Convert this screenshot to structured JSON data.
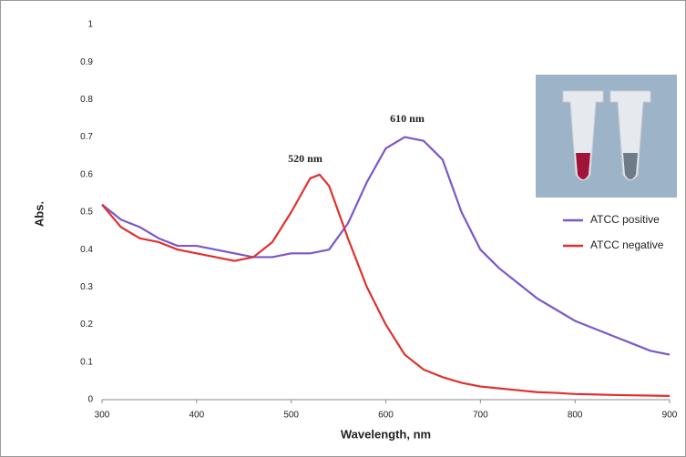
{
  "chart_data": {
    "type": "line",
    "xlabel": "Wavelength, nm",
    "ylabel": "Abs.",
    "xlim": [
      300,
      900
    ],
    "xticks": [
      300,
      400,
      500,
      600,
      700,
      800,
      900
    ],
    "ylim": [
      0,
      1
    ],
    "yticks": [
      0,
      0.1,
      0.2,
      0.3,
      0.4,
      0.5,
      0.6,
      0.7,
      0.8,
      0.9,
      1
    ],
    "legend": "right",
    "annotations": [
      "520 nm",
      "610 nm"
    ],
    "series": [
      {
        "name": "ATCC positive",
        "color": "#7b57c9",
        "x": [
          300,
          320,
          340,
          360,
          380,
          400,
          420,
          440,
          460,
          480,
          500,
          520,
          540,
          560,
          580,
          600,
          620,
          640,
          660,
          680,
          700,
          720,
          740,
          760,
          780,
          800,
          820,
          840,
          860,
          880,
          900
        ],
        "values": [
          0.52,
          0.48,
          0.46,
          0.43,
          0.41,
          0.41,
          0.4,
          0.39,
          0.38,
          0.38,
          0.39,
          0.39,
          0.4,
          0.47,
          0.58,
          0.67,
          0.7,
          0.69,
          0.64,
          0.5,
          0.4,
          0.35,
          0.31,
          0.27,
          0.24,
          0.21,
          0.19,
          0.17,
          0.15,
          0.13,
          0.12
        ]
      },
      {
        "name": "ATCC negative",
        "color": "#e0302e",
        "x": [
          300,
          320,
          340,
          360,
          380,
          400,
          420,
          440,
          460,
          480,
          500,
          520,
          530,
          540,
          560,
          580,
          600,
          620,
          640,
          660,
          680,
          700,
          720,
          740,
          760,
          780,
          800,
          850,
          900
        ],
        "values": [
          0.52,
          0.46,
          0.43,
          0.42,
          0.4,
          0.39,
          0.38,
          0.37,
          0.38,
          0.42,
          0.5,
          0.59,
          0.6,
          0.57,
          0.43,
          0.3,
          0.2,
          0.12,
          0.08,
          0.06,
          0.045,
          0.035,
          0.03,
          0.025,
          0.02,
          0.018,
          0.015,
          0.012,
          0.01
        ]
      }
    ]
  }
}
